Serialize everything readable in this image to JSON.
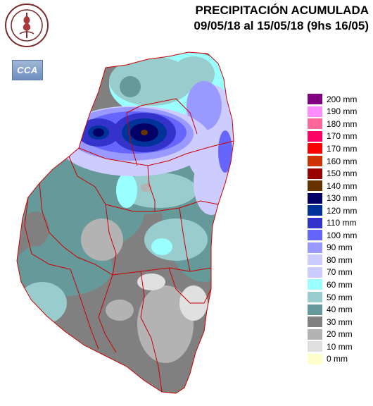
{
  "header": {
    "title": "PRECIPITACIÓN ACUMULADA",
    "subtitle": "09/05/18 al 15/05/18 (9hs 16/05)"
  },
  "logos": {
    "seal_text": "BOLSA DE CEREALES DE ENTRE RIOS",
    "cca_text": "CCA"
  },
  "legend": [
    {
      "label": "200 mm",
      "color": "#800080"
    },
    {
      "label": "190 mm",
      "color": "#ff8cff"
    },
    {
      "label": "180 mm",
      "color": "#ff6699"
    },
    {
      "label": "170 mm",
      "color": "#ff0066"
    },
    {
      "label": "170 mm",
      "color": "#ff0000"
    },
    {
      "label": "160 mm",
      "color": "#cc3300"
    },
    {
      "label": "150 mm",
      "color": "#990000"
    },
    {
      "label": "140 mm",
      "color": "#663300"
    },
    {
      "label": "130 mm",
      "color": "#000066"
    },
    {
      "label": "120 mm",
      "color": "#003399"
    },
    {
      "label": "110 mm",
      "color": "#3333cc"
    },
    {
      "label": "100 mm",
      "color": "#6666ff"
    },
    {
      "label": "90 mm",
      "color": "#9999ff"
    },
    {
      "label": "80 mm",
      "color": "#ccccff"
    },
    {
      "label": "70 mm",
      "color": "#ccccff"
    },
    {
      "label": "60 mm",
      "color": "#99ffff"
    },
    {
      "label": "50 mm",
      "color": "#99cccc"
    },
    {
      "label": "40 mm",
      "color": "#669999"
    },
    {
      "label": "30 mm",
      "color": "#808080"
    },
    {
      "label": "20 mm",
      "color": "#b3b3b3"
    },
    {
      "label": "10 mm",
      "color": "#e0e0e0"
    },
    {
      "label": "0 mm",
      "color": "#ffffcc"
    }
  ],
  "colors": {
    "boundary": "#cc0000"
  }
}
